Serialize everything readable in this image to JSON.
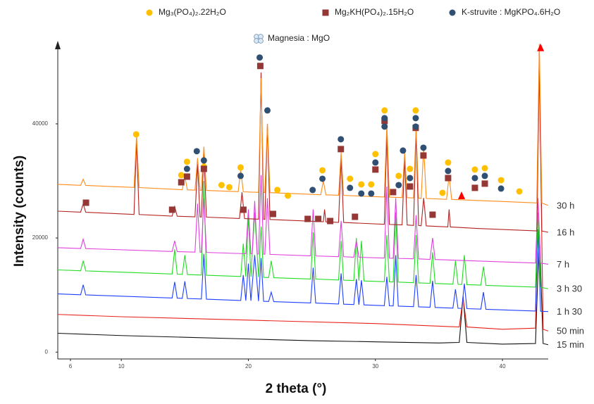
{
  "chart_data": {
    "type": "line",
    "xlabel": "2 theta (°)",
    "ylabel": "Intensity (counts)",
    "xlim": [
      5,
      43.6
    ],
    "ylim": [
      -1200,
      54300
    ],
    "xticks": [
      6,
      10,
      20,
      30,
      40
    ],
    "yticks": [
      0,
      20000,
      40000
    ],
    "grid": false,
    "series": [
      {
        "name": "15 min",
        "color": "#111111",
        "x": [
          5,
          10,
          15,
          20,
          25,
          30,
          35,
          36.6,
          36.9,
          37.2,
          40,
          42.6,
          42.9,
          43.2,
          43.6
        ],
        "values": [
          3300,
          2900,
          2600,
          2300,
          2000,
          1800,
          1600,
          1700,
          9800,
          1700,
          1400,
          1500,
          21000,
          1500,
          1300
        ]
      },
      {
        "name": "50 min",
        "color": "#e8221b",
        "x": [
          5,
          10,
          20,
          30,
          36.6,
          36.9,
          37.2,
          40,
          42.6,
          42.9,
          43.2,
          43.6
        ],
        "values": [
          6600,
          6200,
          5600,
          5000,
          4400,
          9500,
          4400,
          4000,
          4200,
          50000,
          4000,
          3700
        ]
      },
      {
        "name": "1 h 30",
        "color": "#1f3fff",
        "x": [
          5,
          6.8,
          7.0,
          7.2,
          14,
          14.2,
          14.4,
          14.8,
          15.0,
          15.2,
          16.3,
          16.5,
          16.7,
          19.4,
          19.6,
          19.8,
          20.0,
          20.2,
          20.5,
          20.8,
          21.0,
          21.2,
          21.6,
          21.8,
          22.0,
          24.9,
          25.1,
          25.3,
          27.1,
          27.3,
          27.5,
          28.3,
          28.5,
          28.7,
          28.9,
          29.1,
          30.7,
          30.9,
          31.1,
          31.4,
          31.6,
          31.8,
          33.0,
          33.2,
          33.4,
          34.3,
          34.5,
          34.7,
          36.1,
          36.3,
          36.5,
          36.8,
          37.0,
          37.2,
          38.3,
          38.5,
          38.7,
          42.6,
          42.8,
          43.0,
          43.6
        ],
        "values": [
          10200,
          10050,
          11800,
          10030,
          9480,
          12300,
          9460,
          9420,
          12400,
          9390,
          9300,
          17200,
          9270,
          9050,
          13500,
          9020,
          15500,
          9000,
          17000,
          8940,
          16500,
          8900,
          8870,
          10500,
          8840,
          8610,
          14800,
          8600,
          8430,
          13800,
          8400,
          8340,
          12800,
          8310,
          12600,
          8270,
          8140,
          13200,
          8110,
          8090,
          17000,
          8060,
          7960,
          13500,
          7930,
          7860,
          12500,
          7820,
          7710,
          11000,
          7680,
          7660,
          12000,
          7620,
          7540,
          10500,
          7500,
          7190,
          21500,
          7160,
          7100
        ]
      },
      {
        "name": "3 h 30",
        "color": "#22dd22",
        "x": [
          5,
          6.8,
          7.0,
          7.2,
          14,
          14.2,
          14.4,
          14.8,
          15.0,
          15.2,
          16.3,
          16.5,
          16.7,
          19.4,
          19.6,
          19.8,
          20.0,
          20.2,
          20.5,
          20.8,
          21.0,
          21.2,
          21.6,
          21.8,
          22.0,
          24.9,
          25.1,
          25.3,
          27.1,
          27.3,
          27.5,
          28.3,
          28.5,
          28.7,
          28.9,
          29.1,
          30.7,
          30.9,
          31.1,
          31.4,
          31.6,
          31.8,
          33.0,
          33.2,
          33.4,
          34.3,
          34.5,
          34.7,
          36.1,
          36.3,
          36.5,
          36.8,
          37.0,
          37.2,
          38.3,
          38.5,
          38.7,
          42.6,
          42.8,
          43.0,
          43.6
        ],
        "values": [
          14400,
          14250,
          16000,
          14230,
          13680,
          18000,
          13660,
          13620,
          17000,
          13590,
          13500,
          30000,
          13470,
          13250,
          19000,
          13220,
          24000,
          13200,
          24500,
          13140,
          22000,
          13100,
          13070,
          16000,
          13040,
          12810,
          21000,
          12800,
          12630,
          19500,
          12600,
          12540,
          20000,
          12510,
          19500,
          12470,
          12340,
          20500,
          12310,
          12290,
          24500,
          12260,
          12160,
          20500,
          12130,
          12060,
          17500,
          12020,
          11910,
          16000,
          11880,
          11860,
          17000,
          11820,
          11740,
          15000,
          11700,
          11390,
          24500,
          11360,
          11100
        ]
      },
      {
        "name": "7 h",
        "color": "#e040e0",
        "x": [
          5,
          6.8,
          7.0,
          7.2,
          14,
          14.2,
          14.4,
          15.8,
          16.0,
          16.2,
          16.3,
          16.5,
          16.7,
          19.8,
          20.0,
          20.2,
          20.3,
          20.5,
          20.7,
          20.8,
          21.0,
          21.2,
          21.3,
          21.5,
          21.7,
          24.9,
          25.1,
          25.3,
          27.1,
          27.3,
          27.5,
          28.3,
          28.5,
          28.7,
          30.7,
          30.9,
          31.1,
          31.4,
          31.6,
          31.8,
          33.0,
          33.2,
          33.4,
          34.3,
          34.5,
          34.7,
          37.0,
          42.6,
          42.8,
          43.0,
          43.6
        ],
        "values": [
          18300,
          18160,
          19800,
          18140,
          17630,
          19500,
          17610,
          17520,
          26000,
          17500,
          17490,
          27000,
          17470,
          17240,
          25000,
          17220,
          17210,
          26500,
          17190,
          17180,
          31000,
          17160,
          17150,
          27000,
          17130,
          16860,
          25000,
          16850,
          16720,
          23000,
          16710,
          16630,
          19500,
          16620,
          16480,
          29000,
          16460,
          16440,
          27000,
          16420,
          16350,
          24000,
          16330,
          16250,
          20000,
          16230,
          16050,
          15620,
          27000,
          15600,
          15400
        ]
      },
      {
        "name": "16 h",
        "color": "#b22222",
        "x": [
          5,
          6.8,
          7.0,
          7.2,
          11.0,
          11.2,
          11.4,
          14.0,
          14.2,
          14.4,
          15.8,
          16.0,
          16.2,
          16.3,
          16.5,
          16.7,
          19.3,
          19.5,
          19.7,
          20.8,
          21.0,
          21.2,
          21.3,
          21.5,
          21.7,
          25.9,
          26.0,
          26.1,
          27.1,
          27.3,
          27.5,
          30.7,
          30.9,
          31.1,
          32.1,
          32.3,
          32.5,
          33.0,
          33.2,
          33.4,
          33.6,
          33.8,
          34.0,
          35.7,
          35.8,
          35.9,
          38.0,
          42.7,
          42.9,
          43.1,
          43.6
        ],
        "values": [
          24700,
          24530,
          26000,
          24510,
          24130,
          37000,
          24110,
          23830,
          25500,
          23810,
          23700,
          33000,
          23680,
          23670,
          35000,
          23650,
          23420,
          28000,
          23400,
          23290,
          49000,
          23270,
          23260,
          40000,
          23240,
          22840,
          25000,
          22830,
          22740,
          34000,
          22720,
          22390,
          38000,
          22370,
          22290,
          34000,
          22270,
          22200,
          38500,
          22180,
          22140,
          27000,
          22120,
          21940,
          25000,
          21930,
          21670,
          21240,
          53000,
          21220,
          21000
        ]
      },
      {
        "name": "30 h",
        "color": "#ff8c1a",
        "x": [
          5,
          6.8,
          7.0,
          7.2,
          11.0,
          11.2,
          11.4,
          14.8,
          15.0,
          15.2,
          15.8,
          16.0,
          16.2,
          16.3,
          16.5,
          16.7,
          19.2,
          19.4,
          19.6,
          20.8,
          21.0,
          21.2,
          21.3,
          21.5,
          21.7,
          25.7,
          25.9,
          26.1,
          27.1,
          27.3,
          27.5,
          30.7,
          30.9,
          31.1,
          32.1,
          32.3,
          32.5,
          33.0,
          33.2,
          33.4,
          33.6,
          33.8,
          34.0,
          35.6,
          35.8,
          36.0,
          38.0,
          42.7,
          42.9,
          43.1,
          43.6
        ],
        "values": [
          29400,
          29230,
          30300,
          29210,
          28850,
          38000,
          28830,
          28460,
          30800,
          28440,
          28380,
          34000,
          28360,
          28350,
          36000,
          28330,
          28110,
          32000,
          28090,
          27990,
          48000,
          27970,
          27960,
          40000,
          27940,
          27580,
          30000,
          27560,
          27480,
          35000,
          27460,
          27180,
          40000,
          27160,
          27080,
          35000,
          27060,
          27000,
          39500,
          26980,
          26940,
          36000,
          26920,
          26780,
          31000,
          26760,
          26570,
          26140,
          54000,
          26120,
          25700
        ]
      }
    ],
    "markers": [
      {
        "name": "Mg₃(PO₄)₂.22H₂O",
        "color": "#ffc000",
        "shape": "circle",
        "x": [
          11.17,
          14.72,
          15.17,
          16.5,
          17.89,
          18.5,
          19.39,
          22.28,
          23.11,
          25.83,
          28.0,
          28.89,
          29.67,
          30.0,
          30.72,
          31.83,
          32.72,
          33.17,
          35.28,
          35.72,
          37.83,
          38.61,
          39.89,
          41.33
        ],
        "y": [
          38160,
          31000,
          33350,
          32480,
          29270,
          28900,
          32360,
          28410,
          27420,
          31860,
          30380,
          29390,
          29390,
          34700,
          42350,
          30880,
          32110,
          42350,
          27910,
          33220,
          31990,
          32230,
          30130,
          28160
        ]
      },
      {
        "name": "Mg₂KH(PO₄)₂.15H₂O",
        "color": "#953735",
        "shape": "square",
        "x": [
          7.22,
          14.0,
          14.72,
          15.17,
          16.5,
          19.61,
          20.94,
          21.94,
          24.67,
          25.5,
          26.44,
          27.28,
          28.39,
          30.0,
          30.72,
          31.39,
          32.72,
          33.17,
          33.78,
          34.5,
          35.72,
          37.83,
          38.61
        ],
        "y": [
          26180,
          24950,
          29760,
          30750,
          32110,
          24950,
          50140,
          24210,
          23340,
          23340,
          22970,
          35570,
          23710,
          31990,
          40520,
          28040,
          29020,
          39290,
          34450,
          24080,
          30500,
          28780,
          29520
        ]
      },
      {
        "name": "K-struvite : MgKPO₄.6H₂O",
        "color": "#2f4f73",
        "shape": "circle",
        "x": [
          15.94,
          15.17,
          16.5,
          19.39,
          20.89,
          21.5,
          25.06,
          25.83,
          27.28,
          28.0,
          28.89,
          29.67,
          30.0,
          30.72,
          30.72,
          31.83,
          32.17,
          32.72,
          33.17,
          33.17,
          33.78,
          35.72,
          37.83,
          38.61,
          39.89
        ],
        "y": [
          35200,
          32110,
          33590,
          30880,
          51620,
          42350,
          28410,
          30380,
          37300,
          28780,
          27790,
          27790,
          33220,
          39520,
          41000,
          29270,
          35320,
          30500,
          39520,
          41000,
          35820,
          31740,
          30500,
          30880,
          28660
        ]
      },
      {
        "name": "Magnesia : MgO",
        "color": "#ff0000",
        "shape": "triangle",
        "legend_icon": "quartered-circle",
        "x": [
          36.78,
          43.0
        ],
        "y": [
          27420,
          53350
        ]
      }
    ]
  }
}
